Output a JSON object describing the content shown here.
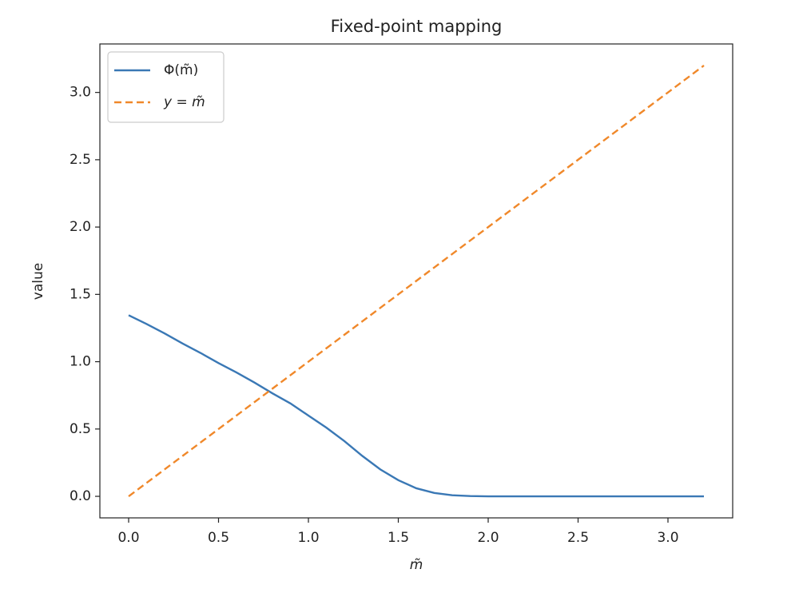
{
  "chart_data": {
    "type": "line",
    "title": "Fixed-point mapping",
    "x_label": "m̃",
    "y_label": "value",
    "x": [
      0,
      0.1,
      0.2,
      0.3,
      0.4,
      0.5,
      0.6,
      0.7,
      0.8,
      0.9,
      1.0,
      1.1,
      1.2,
      1.3,
      1.4,
      1.5,
      1.6,
      1.7,
      1.8,
      1.9,
      2.0,
      2.1,
      2.2,
      2.3,
      2.4,
      2.5,
      2.6,
      2.7,
      2.8,
      2.9,
      3.0,
      3.1,
      3.2
    ],
    "series": [
      {
        "name": "Φ(m̃)",
        "color": "#3a78b5",
        "dash": "solid",
        "values": [
          1.345,
          1.28,
          1.21,
          1.135,
          1.065,
          0.99,
          0.92,
          0.845,
          0.765,
          0.69,
          0.6,
          0.51,
          0.41,
          0.3,
          0.2,
          0.12,
          0.06,
          0.025,
          0.008,
          0.002,
          0,
          0,
          0,
          0,
          0,
          0,
          0,
          0,
          0,
          0,
          0,
          0,
          0
        ]
      },
      {
        "name": "y = m̃",
        "color": "#f0882a",
        "dash": "dashed",
        "values": [
          0,
          0.1,
          0.2,
          0.3,
          0.4,
          0.5,
          0.6,
          0.7,
          0.8,
          0.9,
          1.0,
          1.1,
          1.2,
          1.3,
          1.4,
          1.5,
          1.6,
          1.7,
          1.8,
          1.9,
          2.0,
          2.1,
          2.2,
          2.3,
          2.4,
          2.5,
          2.6,
          2.7,
          2.8,
          2.9,
          3.0,
          3.1,
          3.2
        ]
      }
    ],
    "xlim": [
      -0.16,
      3.36
    ],
    "ylim": [
      -0.16,
      3.36
    ],
    "xticks": [
      {
        "value": 0,
        "label": "0.0"
      },
      {
        "value": 0.5,
        "label": "0.5"
      },
      {
        "value": 1,
        "label": "1.0"
      },
      {
        "value": 1.5,
        "label": "1.5"
      },
      {
        "value": 2,
        "label": "2.0"
      },
      {
        "value": 2.5,
        "label": "2.5"
      },
      {
        "value": 3,
        "label": "3.0"
      }
    ],
    "yticks": [
      {
        "value": 0,
        "label": "0.0"
      },
      {
        "value": 0.5,
        "label": "0.5"
      },
      {
        "value": 1,
        "label": "1.0"
      },
      {
        "value": 1.5,
        "label": "1.5"
      },
      {
        "value": 2,
        "label": "2.0"
      },
      {
        "value": 2.5,
        "label": "2.5"
      },
      {
        "value": 3,
        "label": "3.0"
      }
    ],
    "grid": false,
    "legend": "upper-left"
  }
}
